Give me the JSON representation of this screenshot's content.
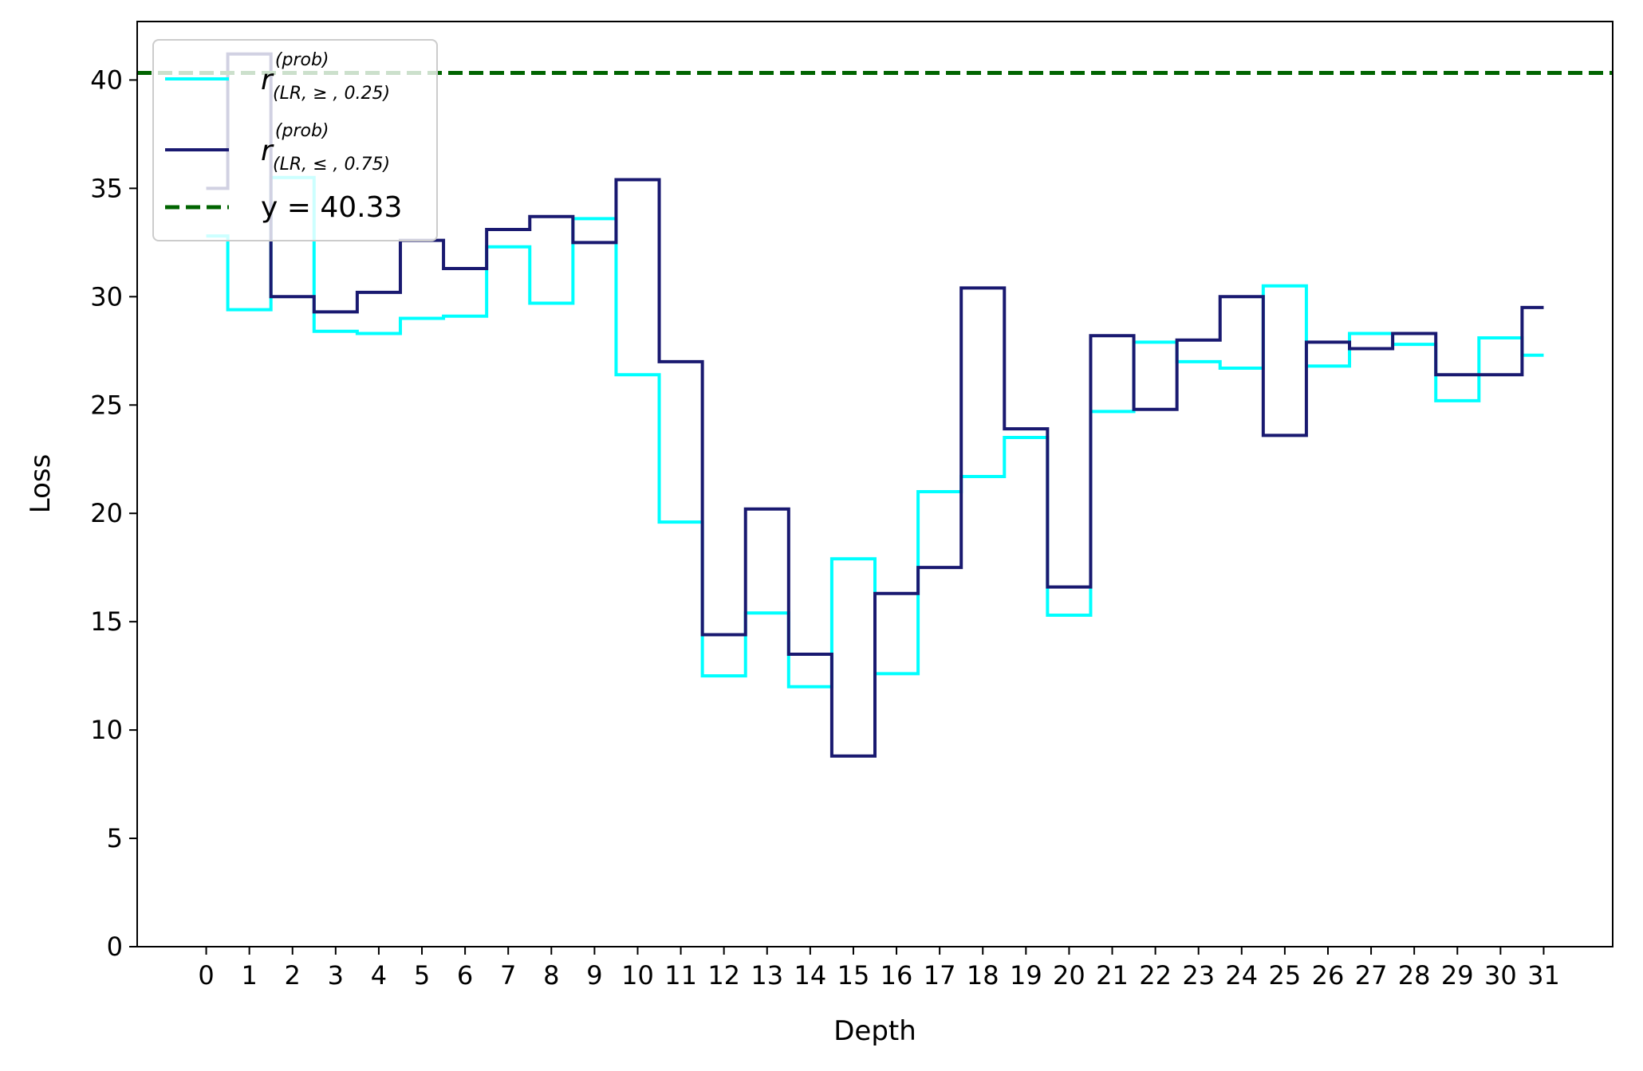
{
  "chart_data": {
    "type": "line",
    "step": "mid",
    "title": "",
    "xlabel": "Depth",
    "ylabel": "Loss",
    "x": [
      0,
      1,
      2,
      3,
      4,
      5,
      6,
      7,
      8,
      9,
      10,
      11,
      12,
      13,
      14,
      15,
      16,
      17,
      18,
      19,
      20,
      21,
      22,
      23,
      24,
      25,
      26,
      27,
      28,
      29,
      30,
      31
    ],
    "xlim": [
      -1.6,
      32.6
    ],
    "ylim": [
      0,
      42.7
    ],
    "yticks": [
      0,
      5,
      10,
      15,
      20,
      25,
      30,
      35,
      40
    ],
    "grid": false,
    "legend_position": "upper-left",
    "series": [
      {
        "name": "r",
        "name_sup": "(prob)",
        "name_sub": "(LR, ≥ , 0.25)",
        "color": "#00ffff",
        "values": [
          32.8,
          29.4,
          35.5,
          28.4,
          28.3,
          29.0,
          29.1,
          32.3,
          29.7,
          33.6,
          26.4,
          19.6,
          12.5,
          15.4,
          12.0,
          17.9,
          12.6,
          21.0,
          21.7,
          23.5,
          15.3,
          24.7,
          27.9,
          27.0,
          26.7,
          30.5,
          26.8,
          28.3,
          27.8,
          25.2,
          28.1,
          27.3
        ]
      },
      {
        "name": "r",
        "name_sup": "(prob)",
        "name_sub": "(LR, ≤ , 0.75)",
        "color": "#191970",
        "values": [
          35.0,
          41.2,
          30.0,
          29.3,
          30.2,
          32.6,
          31.3,
          33.1,
          33.7,
          32.5,
          35.4,
          27.0,
          14.4,
          20.2,
          13.5,
          8.8,
          16.3,
          17.5,
          30.4,
          23.9,
          16.6,
          28.2,
          24.8,
          28.0,
          30.0,
          23.6,
          27.9,
          27.6,
          28.3,
          26.4,
          26.4,
          29.5
        ]
      }
    ],
    "hlines": [
      {
        "y": 40.33,
        "label": "y = 40.33",
        "color": "#006400",
        "style": "dashed"
      }
    ]
  }
}
